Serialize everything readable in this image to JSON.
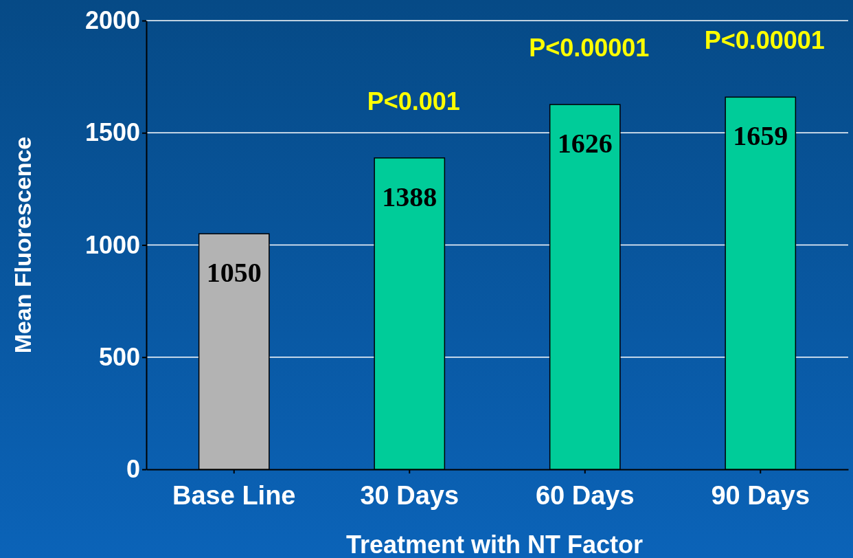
{
  "chart_data": {
    "type": "bar",
    "xlabel": "Treatment with NT Factor",
    "ylabel": "Mean Fluorescence",
    "categories": [
      "Base Line",
      "30 Days",
      "60 Days",
      "90 Days"
    ],
    "values": [
      1050,
      1388,
      1626,
      1659
    ],
    "colors": [
      "#b3b3b3",
      "#00cc99",
      "#00cc99",
      "#00cc99"
    ],
    "ylim": [
      0,
      2000
    ],
    "yticks": [
      0,
      500,
      1000,
      1500,
      2000
    ],
    "grid": "y",
    "data_labels": true,
    "annotations": [
      {
        "text": "P<0.001",
        "x": "30 Days",
        "y": 1388
      },
      {
        "text": "P<0.00001",
        "x": "60 Days",
        "y": 1626
      },
      {
        "text": "P<0.00001",
        "x": "90 Days",
        "y": 1659
      }
    ]
  }
}
